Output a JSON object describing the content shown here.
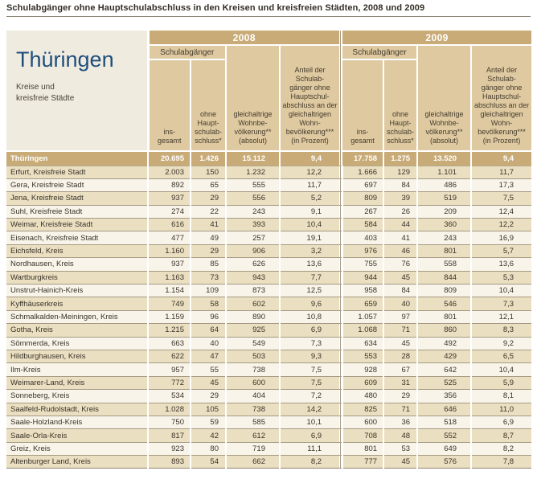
{
  "title": "Schulabgänger ohne Hauptschulabschluss in den Kreisen und kreisfreien Städten, 2008 und 2009",
  "table": {
    "region_title": "Thüringen",
    "region_subtitle": "Kreise und\nkreisfreie Städte",
    "year_groups": {
      "y2008": "2008",
      "y2009": "2009"
    },
    "col_headers": {
      "schulabgaenger": "Schulabgänger",
      "insgesamt": "ins-\ngesamt",
      "ohne_abschluss": "ohne\nHaupt-\nschulab-\nschluss*",
      "wohnbevoelkerung": "gleichaltrige\nWohnbe-\nvölkerung**\n(absolut)",
      "anteil": "Anteil der\nSchulab-\ngänger ohne\nHauptschul-\nabschluss an der\ngleichaltrigen\nWohn-\nbevölkerung***\n(in Prozent)"
    },
    "total_row": {
      "label": "Thüringen",
      "y2008": [
        "20.695",
        "1.426",
        "15.112",
        "9,4"
      ],
      "y2009": [
        "17.758",
        "1.275",
        "13.520",
        "9,4"
      ]
    },
    "rows": [
      {
        "label": "Erfurt, Kreisfreie Stadt",
        "y2008": [
          "2.003",
          "150",
          "1.232",
          "12,2"
        ],
        "y2009": [
          "1.666",
          "129",
          "1.101",
          "11,7"
        ]
      },
      {
        "label": "Gera, Kreisfreie Stadt",
        "y2008": [
          "892",
          "65",
          "555",
          "11,7"
        ],
        "y2009": [
          "697",
          "84",
          "486",
          "17,3"
        ]
      },
      {
        "label": "Jena, Kreisfreie Stadt",
        "y2008": [
          "937",
          "29",
          "556",
          "5,2"
        ],
        "y2009": [
          "809",
          "39",
          "519",
          "7,5"
        ]
      },
      {
        "label": "Suhl, Kreisfreie Stadt",
        "y2008": [
          "274",
          "22",
          "243",
          "9,1"
        ],
        "y2009": [
          "267",
          "26",
          "209",
          "12,4"
        ]
      },
      {
        "label": "Weimar, Kreisfreie Stadt",
        "y2008": [
          "616",
          "41",
          "393",
          "10,4"
        ],
        "y2009": [
          "584",
          "44",
          "360",
          "12,2"
        ]
      },
      {
        "label": "Eisenach, Kreisfreie Stadt",
        "y2008": [
          "477",
          "49",
          "257",
          "19,1"
        ],
        "y2009": [
          "403",
          "41",
          "243",
          "16,9"
        ]
      },
      {
        "label": "Eichsfeld, Kreis",
        "y2008": [
          "1.160",
          "29",
          "906",
          "3,2"
        ],
        "y2009": [
          "976",
          "46",
          "801",
          "5,7"
        ]
      },
      {
        "label": "Nordhausen, Kreis",
        "y2008": [
          "937",
          "85",
          "626",
          "13,6"
        ],
        "y2009": [
          "755",
          "76",
          "558",
          "13,6"
        ]
      },
      {
        "label": "Wartburgkreis",
        "y2008": [
          "1.163",
          "73",
          "943",
          "7,7"
        ],
        "y2009": [
          "944",
          "45",
          "844",
          "5,3"
        ]
      },
      {
        "label": "Unstrut-Hainich-Kreis",
        "y2008": [
          "1.154",
          "109",
          "873",
          "12,5"
        ],
        "y2009": [
          "958",
          "84",
          "809",
          "10,4"
        ]
      },
      {
        "label": "Kyffhäuserkreis",
        "y2008": [
          "749",
          "58",
          "602",
          "9,6"
        ],
        "y2009": [
          "659",
          "40",
          "546",
          "7,3"
        ]
      },
      {
        "label": "Schmalkalden-Meiningen, Kreis",
        "y2008": [
          "1.159",
          "96",
          "890",
          "10,8"
        ],
        "y2009": [
          "1.057",
          "97",
          "801",
          "12,1"
        ]
      },
      {
        "label": "Gotha, Kreis",
        "y2008": [
          "1.215",
          "64",
          "925",
          "6,9"
        ],
        "y2009": [
          "1.068",
          "71",
          "860",
          "8,3"
        ]
      },
      {
        "label": "Sömmerda, Kreis",
        "y2008": [
          "663",
          "40",
          "549",
          "7,3"
        ],
        "y2009": [
          "634",
          "45",
          "492",
          "9,2"
        ]
      },
      {
        "label": "Hildburghausen, Kreis",
        "y2008": [
          "622",
          "47",
          "503",
          "9,3"
        ],
        "y2009": [
          "553",
          "28",
          "429",
          "6,5"
        ]
      },
      {
        "label": "Ilm-Kreis",
        "y2008": [
          "957",
          "55",
          "738",
          "7,5"
        ],
        "y2009": [
          "928",
          "67",
          "642",
          "10,4"
        ]
      },
      {
        "label": "Weimarer-Land, Kreis",
        "y2008": [
          "772",
          "45",
          "600",
          "7,5"
        ],
        "y2009": [
          "609",
          "31",
          "525",
          "5,9"
        ]
      },
      {
        "label": "Sonneberg, Kreis",
        "y2008": [
          "534",
          "29",
          "404",
          "7,2"
        ],
        "y2009": [
          "480",
          "29",
          "356",
          "8,1"
        ]
      },
      {
        "label": "Saalfeld-Rudolstadt, Kreis",
        "y2008": [
          "1.028",
          "105",
          "738",
          "14,2"
        ],
        "y2009": [
          "825",
          "71",
          "646",
          "11,0"
        ]
      },
      {
        "label": "Saale-Holzland-Kreis",
        "y2008": [
          "750",
          "59",
          "585",
          "10,1"
        ],
        "y2009": [
          "600",
          "36",
          "518",
          "6,9"
        ]
      },
      {
        "label": "Saale-Orla-Kreis",
        "y2008": [
          "817",
          "42",
          "612",
          "6,9"
        ],
        "y2009": [
          "708",
          "48",
          "552",
          "8,7"
        ]
      },
      {
        "label": "Greiz, Kreis",
        "y2008": [
          "923",
          "80",
          "719",
          "11,1"
        ],
        "y2009": [
          "801",
          "53",
          "649",
          "8,2"
        ]
      },
      {
        "label": "Altenburger Land, Kreis",
        "y2008": [
          "893",
          "54",
          "662",
          "8,2"
        ],
        "y2009": [
          "777",
          "45",
          "576",
          "7,8"
        ]
      }
    ]
  },
  "colors": {
    "gold_band": "#c8ab77",
    "subheader_bg": "#dec9a1",
    "row_tan": "#ebdfc1",
    "row_cream": "#f8f4e9",
    "corner_bg": "#f0ebdf",
    "region_title_blue": "#1e4e7d",
    "row_border": "#a59a83"
  }
}
